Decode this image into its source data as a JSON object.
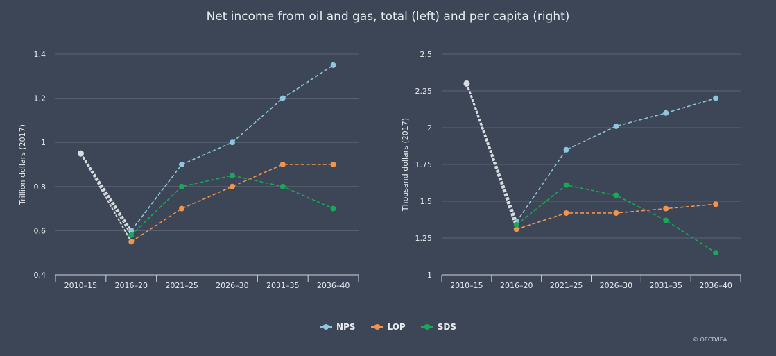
{
  "title": "Net income from oil and gas, total (left) and per capita (right)",
  "credit": "© OECD/IEA",
  "legend": [
    {
      "name": "NPS",
      "color": "#8ec6df"
    },
    {
      "name": "LOP",
      "color": "#f0954b"
    },
    {
      "name": "SDS",
      "color": "#1aa758"
    }
  ],
  "chart_data": [
    {
      "type": "line",
      "categories": [
        "2010-15",
        "2016-20",
        "2021-25",
        "2026-30",
        "2031-35",
        "2036-40"
      ],
      "ylabel": "Trillion dollars (2017)",
      "ylim": [
        0.4,
        1.4
      ],
      "yticks": [
        "0.4",
        "0.6",
        "0.8",
        "1",
        "1.2",
        "1.4"
      ],
      "grid": true,
      "historical": {
        "color": "#d9dcdf",
        "values": [
          0.95,
          0.6
        ]
      },
      "series": [
        {
          "name": "NPS",
          "color": "#8ec6df",
          "values": [
            0.95,
            0.6,
            0.9,
            1.0,
            1.2,
            1.35
          ]
        },
        {
          "name": "LOP",
          "color": "#f0954b",
          "values": [
            0.95,
            0.55,
            0.7,
            0.8,
            0.9,
            0.9
          ]
        },
        {
          "name": "SDS",
          "color": "#1aa758",
          "values": [
            0.95,
            0.58,
            0.8,
            0.85,
            0.8,
            0.7
          ]
        }
      ]
    },
    {
      "type": "line",
      "categories": [
        "2010-15",
        "2016-20",
        "2021-25",
        "2026-30",
        "2031-35",
        "2036-40"
      ],
      "ylabel": "Thousand dollars (2017)",
      "ylim": [
        1,
        2.5
      ],
      "yticks": [
        "1",
        "1.25",
        "1.5",
        "1.75",
        "2",
        "2.25",
        "2.5"
      ],
      "grid": true,
      "historical": {
        "color": "#d9dcdf",
        "values": [
          2.3,
          1.36
        ]
      },
      "series": [
        {
          "name": "NPS",
          "color": "#8ec6df",
          "values": [
            2.3,
            1.36,
            1.85,
            2.01,
            2.1,
            2.2
          ]
        },
        {
          "name": "LOP",
          "color": "#f0954b",
          "values": [
            2.3,
            1.31,
            1.42,
            1.42,
            1.45,
            1.48
          ]
        },
        {
          "name": "SDS",
          "color": "#1aa758",
          "values": [
            2.3,
            1.34,
            1.61,
            1.54,
            1.37,
            1.15
          ]
        }
      ]
    }
  ]
}
